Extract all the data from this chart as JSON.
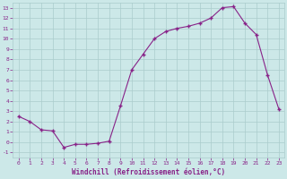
{
  "x": [
    0,
    1,
    2,
    3,
    4,
    5,
    6,
    7,
    8,
    9,
    10,
    11,
    12,
    13,
    14,
    15,
    16,
    17,
    18,
    19,
    20,
    21,
    22,
    23
  ],
  "y": [
    2.5,
    2.0,
    1.2,
    1.1,
    -0.5,
    -0.2,
    -0.2,
    -0.1,
    0.1,
    3.5,
    7.0,
    8.5,
    10.0,
    10.7,
    11.0,
    11.2,
    11.5,
    12.0,
    13.0,
    13.1,
    11.5,
    10.4,
    6.5,
    3.2
  ],
  "xlabel": "Windchill (Refroidissement éolien,°C)",
  "xlim": [
    -0.5,
    23.5
  ],
  "ylim": [
    -1.5,
    13.5
  ],
  "yticks": [
    -1,
    0,
    1,
    2,
    3,
    4,
    5,
    6,
    7,
    8,
    9,
    10,
    11,
    12,
    13
  ],
  "xticks": [
    0,
    1,
    2,
    3,
    4,
    5,
    6,
    7,
    8,
    9,
    10,
    11,
    12,
    13,
    14,
    15,
    16,
    17,
    18,
    19,
    20,
    21,
    22,
    23
  ],
  "line_color": "#882288",
  "bg_color": "#cce8e8",
  "grid_color": "#aacccc",
  "label_color": "#882288",
  "tick_color": "#882288"
}
